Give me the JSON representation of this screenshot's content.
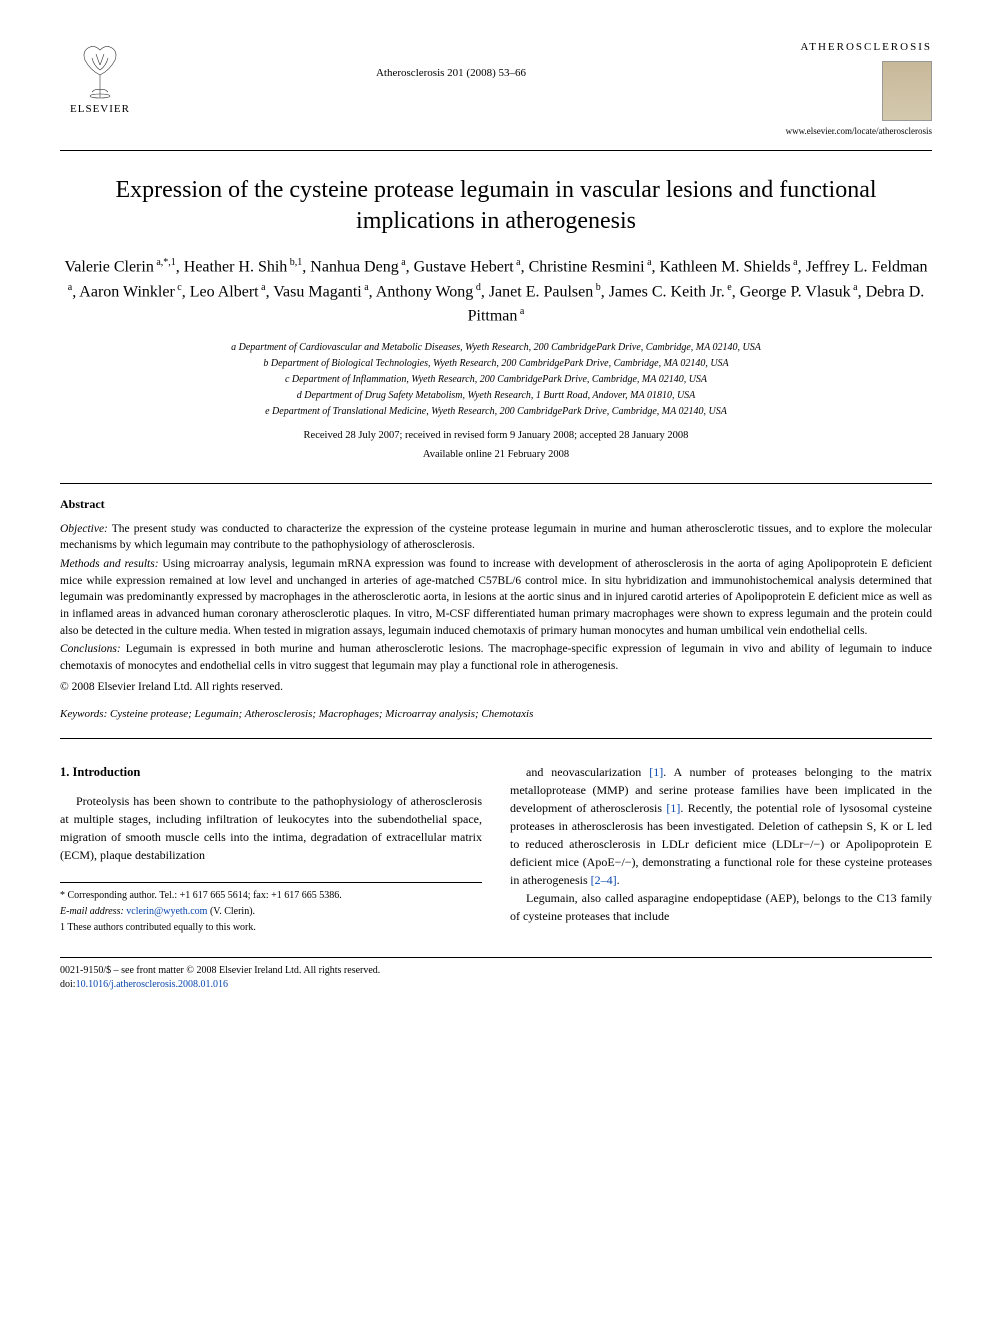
{
  "publisher": {
    "name": "ELSEVIER"
  },
  "journal": {
    "reference": "Atherosclerosis 201 (2008) 53–66",
    "brand": "ATHEROSCLEROSIS",
    "url": "www.elsevier.com/locate/atherosclerosis"
  },
  "title": "Expression of the cysteine protease legumain in vascular lesions and functional implications in atherogenesis",
  "authors_html": "Valerie Clerin<sup> a,*,1</sup>, Heather H. Shih<sup> b,1</sup>, Nanhua Deng<sup> a</sup>, Gustave Hebert<sup> a</sup>, Christine Resmini<sup> a</sup>, Kathleen M. Shields<sup> a</sup>, Jeffrey L. Feldman<sup> a</sup>, Aaron Winkler<sup> c</sup>, Leo Albert<sup> a</sup>, Vasu Maganti<sup> a</sup>, Anthony Wong<sup> d</sup>, Janet E. Paulsen<sup> b</sup>, James C. Keith Jr.<sup> e</sup>, George P. Vlasuk<sup> a</sup>, Debra D. Pittman<sup> a</sup>",
  "affiliations": {
    "a": "a Department of Cardiovascular and Metabolic Diseases, Wyeth Research, 200 CambridgePark Drive, Cambridge, MA 02140, USA",
    "b": "b Department of Biological Technologies, Wyeth Research, 200 CambridgePark Drive, Cambridge, MA 02140, USA",
    "c": "c Department of Inflammation, Wyeth Research, 200 CambridgePark Drive, Cambridge, MA 02140, USA",
    "d": "d Department of Drug Safety Metabolism, Wyeth Research, 1 Burtt Road, Andover, MA 01810, USA",
    "e": "e Department of Translational Medicine, Wyeth Research, 200 CambridgePark Drive, Cambridge, MA 02140, USA"
  },
  "dates": "Received 28 July 2007; received in revised form 9 January 2008; accepted 28 January 2008",
  "available": "Available online 21 February 2008",
  "abstract": {
    "heading": "Abstract",
    "objective_label": "Objective:",
    "objective": "The present study was conducted to characterize the expression of the cysteine protease legumain in murine and human atherosclerotic tissues, and to explore the molecular mechanisms by which legumain may contribute to the pathophysiology of atherosclerosis.",
    "methods_label": "Methods and results:",
    "methods": "Using microarray analysis, legumain mRNA expression was found to increase with development of atherosclerosis in the aorta of aging Apolipoprotein E deficient mice while expression remained at low level and unchanged in arteries of age-matched C57BL/6 control mice. In situ hybridization and immunohistochemical analysis determined that legumain was predominantly expressed by macrophages in the atherosclerotic aorta, in lesions at the aortic sinus and in injured carotid arteries of Apolipoprotein E deficient mice as well as in inflamed areas in advanced human coronary atherosclerotic plaques. In vitro, M-CSF differentiated human primary macrophages were shown to express legumain and the protein could also be detected in the culture media. When tested in migration assays, legumain induced chemotaxis of primary human monocytes and human umbilical vein endothelial cells.",
    "conclusions_label": "Conclusions:",
    "conclusions": "Legumain is expressed in both murine and human atherosclerotic lesions. The macrophage-specific expression of legumain in vivo and ability of legumain to induce chemotaxis of monocytes and endothelial cells in vitro suggest that legumain may play a functional role in atherogenesis.",
    "copyright": "© 2008 Elsevier Ireland Ltd. All rights reserved."
  },
  "keywords": {
    "label": "Keywords:",
    "text": "Cysteine protease; Legumain; Atherosclerosis; Macrophages; Microarray analysis; Chemotaxis"
  },
  "introduction": {
    "heading": "1.  Introduction",
    "col1": "Proteolysis has been shown to contribute to the pathophysiology of atherosclerosis at multiple stages, including infiltration of leukocytes into the subendothelial space, migration of smooth muscle cells into the intima, degradation of extracellular matrix (ECM), plaque destabilization",
    "col2a": "and neovascularization [1]. A number of proteases belonging to the matrix metalloprotease (MMP) and serine protease families have been implicated in the development of atherosclerosis [1]. Recently, the potential role of lysosomal cysteine proteases in atherosclerosis has been investigated. Deletion of cathepsin S, K or L led to reduced atherosclerosis in LDLr deficient mice (LDLr−/−) or Apolipoprotein E deficient mice (ApoE−/−), demonstrating a functional role for these cysteine proteases in atherogenesis [2–4].",
    "col2b": "Legumain, also called asparagine endopeptidase (AEP), belongs to the C13 family of cysteine proteases that include",
    "cite1": "[1]",
    "cite2": "[2–4]"
  },
  "footnotes": {
    "corresponding": "* Corresponding author. Tel.: +1 617 665 5614; fax: +1 617 665 5386.",
    "email_label": "E-mail address:",
    "email": "vclerin@wyeth.com",
    "email_suffix": "(V. Clerin).",
    "contrib": "1 These authors contributed equally to this work."
  },
  "doi": {
    "front": "0021-9150/$ – see front matter © 2008 Elsevier Ireland Ltd. All rights reserved.",
    "doi_label": "doi:",
    "doi": "10.1016/j.atherosclerosis.2008.01.016"
  },
  "colors": {
    "link": "#0645ad",
    "text": "#000000",
    "bg": "#ffffff"
  }
}
